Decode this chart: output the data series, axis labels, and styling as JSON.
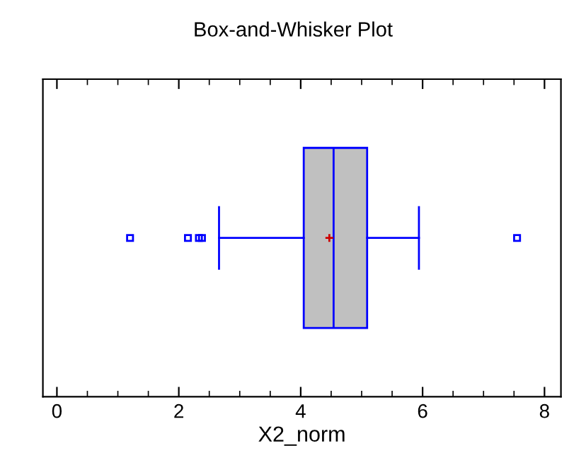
{
  "chart_data": {
    "type": "box",
    "title": "Box-and-Whisker Plot",
    "xlabel": "X2_norm",
    "orientation": "horizontal",
    "categories": [
      null
    ],
    "series": [
      {
        "color": "#c0c0c0",
        "boxes": [
          {
            "low": 2.66,
            "q1": 4.05,
            "median": 4.54,
            "q3": 5.09,
            "high": 5.94,
            "mean": 4.47,
            "outliers": [
              1.2,
              2.15,
              2.33,
              2.38,
              7.55
            ]
          }
        ]
      }
    ],
    "xlim": [
      -0.23,
      8.27
    ],
    "xticks": [
      0,
      2,
      4,
      6,
      8
    ],
    "grid": false,
    "legend": false,
    "tick_labels": "x"
  }
}
